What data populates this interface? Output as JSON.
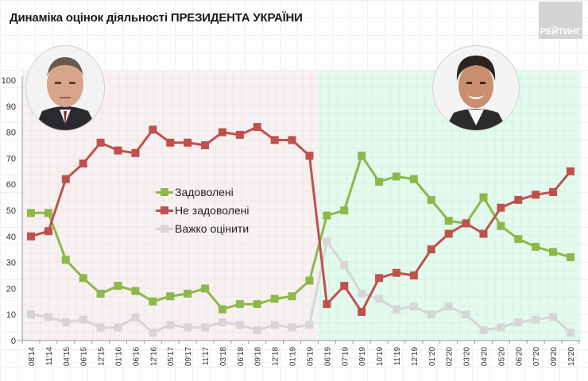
{
  "title": "Динаміка оцінок діяльності ПРЕЗИДЕНТА УКРАЇНИ",
  "logo": "РЕЙТИНГ",
  "portraits": {
    "left": "portrait-poroshenko",
    "right": "portrait-zelensky"
  },
  "colors": {
    "satisfied": "#8db84a",
    "dissatisfied": "#c0504d",
    "hard_to_say": "#d6d6d6",
    "period1_bg": "#f8f1f1",
    "period2_bg": "#e2fbee"
  },
  "legend": [
    {
      "label": "Задоволені",
      "color": "#8db84a"
    },
    {
      "label": "Не задоволені",
      "color": "#c0504d"
    },
    {
      "label": "Важко оцінити",
      "color": "#d6d6d6"
    }
  ],
  "chart_data": {
    "type": "line",
    "title": "Динаміка оцінок діяльності ПРЕЗИДЕНТА УКРАЇНИ",
    "xlabel": "",
    "ylabel": "",
    "ylim": [
      0,
      100
    ],
    "yticks": [
      0,
      10,
      20,
      30,
      40,
      50,
      60,
      70,
      80,
      90,
      100
    ],
    "grid": true,
    "legend_position": "center-left",
    "categories": [
      "08'14",
      "11'14",
      "04'15",
      "06'15",
      "12'15",
      "01'16",
      "06'16",
      "12'16",
      "05'17",
      "09'17",
      "11'17",
      "03'18",
      "06'18",
      "09'18",
      "12'18",
      "01'19",
      "05'19",
      "06'19",
      "07'19",
      "09'19",
      "10'19",
      "11'19",
      "12'19",
      "01'20",
      "02'20",
      "03'20",
      "04'20",
      "05'20",
      "06'20",
      "07'20",
      "09'20",
      "12'20"
    ],
    "series": [
      {
        "name": "Задоволені",
        "color": "#8db84a",
        "values": [
          49,
          49,
          31,
          24,
          18,
          21,
          19,
          15,
          17,
          18,
          20,
          12,
          14,
          14,
          16,
          17,
          23,
          48,
          50,
          71,
          61,
          63,
          62,
          54,
          46,
          45,
          55,
          44,
          39,
          36,
          34,
          32
        ]
      },
      {
        "name": "Не задоволені",
        "color": "#c0504d",
        "values": [
          40,
          42,
          62,
          68,
          76,
          73,
          72,
          81,
          76,
          76,
          75,
          80,
          79,
          82,
          77,
          77,
          71,
          14,
          21,
          11,
          24,
          26,
          25,
          35,
          41,
          45,
          41,
          51,
          54,
          56,
          57,
          65
        ]
      },
      {
        "name": "Важко оцінити",
        "color": "#d6d6d6",
        "values": [
          10,
          9,
          7,
          8,
          5,
          5,
          9,
          3,
          6,
          5,
          5,
          7,
          6,
          4,
          6,
          5,
          6,
          38,
          29,
          18,
          16,
          12,
          13,
          10,
          13,
          10,
          4,
          5,
          7,
          8,
          9,
          3
        ]
      }
    ],
    "periods": [
      {
        "label": "Poroshenko",
        "from": "08'14",
        "to": "05'19"
      },
      {
        "label": "Zelensky",
        "from": "06'19",
        "to": "12'20"
      }
    ]
  }
}
